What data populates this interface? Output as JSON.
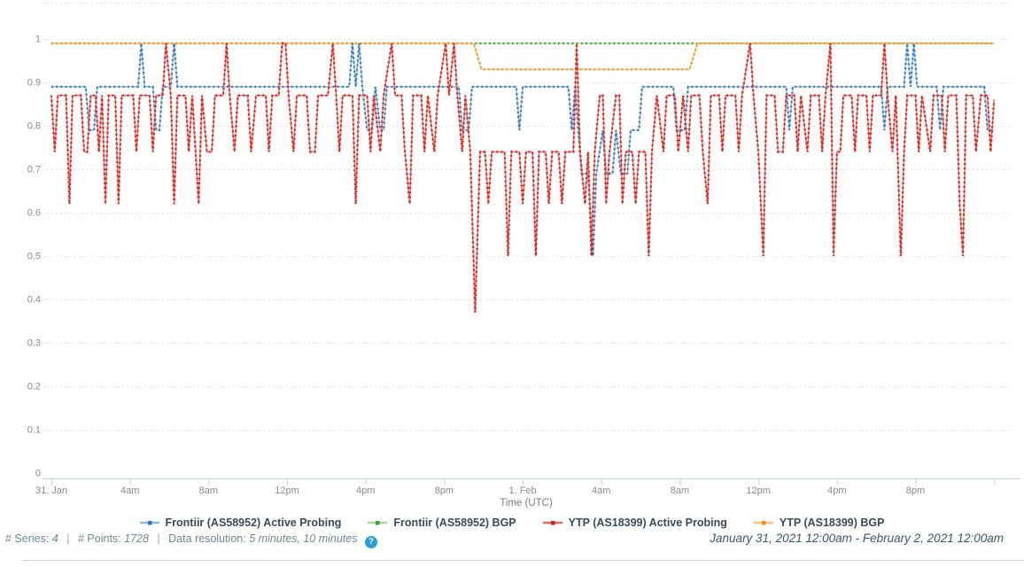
{
  "xaxis": {
    "label": "Time (UTC)",
    "ticks": [
      "31. Jan",
      "4am",
      "8am",
      "12pm",
      "4pm",
      "8pm",
      "1. Feb",
      "4am",
      "8am",
      "12pm",
      "4pm",
      "8pm"
    ]
  },
  "yaxis": {
    "ticks": [
      "0",
      "0.1",
      "0.2",
      "0.3",
      "0.4",
      "0.5",
      "0.6",
      "0.7",
      "0.8",
      "0.9",
      "1"
    ]
  },
  "legend": [
    {
      "label": "Frontiir (AS58952) Active Probing",
      "line_color": "#8cb9dc",
      "marker_color": "#2f77b5"
    },
    {
      "label": "Frontiir (AS58952) BGP",
      "line_color": "#a9d89b",
      "marker_color": "#3f9e3f"
    },
    {
      "label": "YTP (AS18399) Active Probing",
      "line_color": "#f0695f",
      "marker_color": "#d42020"
    },
    {
      "label": "YTP (AS18399) BGP",
      "line_color": "#fcc179",
      "marker_color": "#f1921e"
    }
  ],
  "footer": {
    "series_label": "# Series:",
    "series_value": "4",
    "separator": "|",
    "points_label": "# Points:",
    "points_value": "1728",
    "resolution_label": "Data resolution:",
    "resolution_value": "5 minutes, 10 minutes",
    "help_icon": "?"
  },
  "date_range": "January 31, 2021 12:00am - February 2, 2021 12:00am",
  "colors": {
    "grid": "#e4e4e4",
    "axis": "#c6d2dd",
    "tick_label": "#8b8b8b",
    "axis_title": "#7b7b7b"
  },
  "chart_data": {
    "type": "line",
    "title": "",
    "xlabel": "Time (UTC)",
    "ylabel": "",
    "x_unit": "hours since January 31, 2021 12:00am UTC",
    "xlim": [
      0,
      48
    ],
    "ylim": [
      0,
      1.08
    ],
    "grid": "horizontal-dashed",
    "legend_position": "bottom",
    "x_tick_hours": [
      0,
      4,
      8,
      12,
      16,
      20,
      24,
      28,
      32,
      36,
      40,
      44,
      48
    ],
    "y_tick_values": [
      0,
      0.1,
      0.2,
      0.3,
      0.4,
      0.5,
      0.6,
      0.7,
      0.8,
      0.9,
      1
    ],
    "series": [
      {
        "name": "Frontiir (AS58952) BGP",
        "line_color": "#a9d89b",
        "marker_color": "#3f9e3f",
        "points": [
          [
            0,
            0.99
          ],
          [
            48,
            0.99
          ]
        ]
      },
      {
        "name": "YTP (AS18399) BGP",
        "line_color": "#fcc179",
        "marker_color": "#f1921e",
        "points": [
          [
            0,
            0.99
          ],
          [
            21.5,
            0.99
          ],
          [
            21.9,
            0.93
          ],
          [
            32.5,
            0.93
          ],
          [
            32.9,
            0.99
          ],
          [
            48,
            0.99
          ]
        ]
      },
      {
        "name": "Frontiir (AS58952) Active Probing",
        "line_color": "#8cb9dc",
        "marker_color": "#2f77b5",
        "points": [
          [
            0,
            0.89
          ],
          [
            1.75,
            0.89
          ],
          [
            1.92,
            0.79
          ],
          [
            2.17,
            0.79
          ],
          [
            2.33,
            0.89
          ],
          [
            4.42,
            0.89
          ],
          [
            4.58,
            0.99
          ],
          [
            4.75,
            0.89
          ],
          [
            5.17,
            0.89
          ],
          [
            5.33,
            0.79
          ],
          [
            5.5,
            0.79
          ],
          [
            5.67,
            0.89
          ],
          [
            6.08,
            0.89
          ],
          [
            6.25,
            0.99
          ],
          [
            6.42,
            0.89
          ],
          [
            15.17,
            0.89
          ],
          [
            15.33,
            0.99
          ],
          [
            15.5,
            0.89
          ],
          [
            15.67,
            0.99
          ],
          [
            15.83,
            0.89
          ],
          [
            16.08,
            0.79
          ],
          [
            16.33,
            0.79
          ],
          [
            16.5,
            0.89
          ],
          [
            16.75,
            0.79
          ],
          [
            16.92,
            0.79
          ],
          [
            17.08,
            0.89
          ],
          [
            20.75,
            0.89
          ],
          [
            20.92,
            0.79
          ],
          [
            21.25,
            0.79
          ],
          [
            21.42,
            0.89
          ],
          [
            23.67,
            0.89
          ],
          [
            23.83,
            0.79
          ],
          [
            24.0,
            0.89
          ],
          [
            26.33,
            0.89
          ],
          [
            26.5,
            0.79
          ],
          [
            26.67,
            0.89
          ],
          [
            26.83,
            0.79
          ],
          [
            27.0,
            0.69
          ],
          [
            27.33,
            0.69
          ],
          [
            27.58,
            0.5
          ],
          [
            27.75,
            0.69
          ],
          [
            28.08,
            0.79
          ],
          [
            28.25,
            0.69
          ],
          [
            28.58,
            0.69
          ],
          [
            28.75,
            0.79
          ],
          [
            29.0,
            0.69
          ],
          [
            29.33,
            0.69
          ],
          [
            29.5,
            0.79
          ],
          [
            29.92,
            0.79
          ],
          [
            30.08,
            0.89
          ],
          [
            31.67,
            0.89
          ],
          [
            31.83,
            0.79
          ],
          [
            32.25,
            0.79
          ],
          [
            32.42,
            0.89
          ],
          [
            37.42,
            0.89
          ],
          [
            37.58,
            0.79
          ],
          [
            37.75,
            0.89
          ],
          [
            42.25,
            0.89
          ],
          [
            42.42,
            0.79
          ],
          [
            42.58,
            0.89
          ],
          [
            43.42,
            0.89
          ],
          [
            43.58,
            0.99
          ],
          [
            43.75,
            0.89
          ],
          [
            43.92,
            0.99
          ],
          [
            44.08,
            0.89
          ],
          [
            45.08,
            0.89
          ],
          [
            45.25,
            0.79
          ],
          [
            45.42,
            0.89
          ],
          [
            47.5,
            0.89
          ],
          [
            47.67,
            0.79
          ],
          [
            48,
            0.79
          ]
        ]
      },
      {
        "name": "YTP (AS18399) Active Probing",
        "line_color": "#f0695f",
        "marker_color": "#d42020",
        "points": [
          [
            0,
            0.87
          ],
          [
            0.17,
            0.74
          ],
          [
            0.33,
            0.87
          ],
          [
            0.75,
            0.87
          ],
          [
            0.92,
            0.62
          ],
          [
            1.08,
            0.87
          ],
          [
            1.5,
            0.87
          ],
          [
            1.67,
            0.74
          ],
          [
            1.83,
            0.74
          ],
          [
            2.0,
            0.87
          ],
          [
            2.25,
            0.87
          ],
          [
            2.42,
            0.74
          ],
          [
            2.58,
            0.87
          ],
          [
            2.75,
            0.62
          ],
          [
            2.92,
            0.87
          ],
          [
            3.25,
            0.87
          ],
          [
            3.42,
            0.62
          ],
          [
            3.58,
            0.87
          ],
          [
            4.17,
            0.87
          ],
          [
            4.33,
            0.74
          ],
          [
            4.5,
            0.87
          ],
          [
            5.0,
            0.87
          ],
          [
            5.17,
            0.74
          ],
          [
            5.33,
            0.87
          ],
          [
            5.67,
            0.87
          ],
          [
            5.83,
            0.99
          ],
          [
            6.08,
            0.87
          ],
          [
            6.25,
            0.62
          ],
          [
            6.42,
            0.87
          ],
          [
            6.83,
            0.87
          ],
          [
            7.0,
            0.74
          ],
          [
            7.17,
            0.87
          ],
          [
            7.5,
            0.62
          ],
          [
            7.67,
            0.87
          ],
          [
            7.92,
            0.74
          ],
          [
            8.17,
            0.74
          ],
          [
            8.33,
            0.87
          ],
          [
            8.75,
            0.87
          ],
          [
            8.92,
            0.99
          ],
          [
            9.08,
            0.87
          ],
          [
            9.33,
            0.74
          ],
          [
            9.5,
            0.87
          ],
          [
            10.0,
            0.87
          ],
          [
            10.17,
            0.74
          ],
          [
            10.42,
            0.87
          ],
          [
            10.92,
            0.87
          ],
          [
            11.08,
            0.74
          ],
          [
            11.25,
            0.87
          ],
          [
            11.58,
            0.87
          ],
          [
            11.75,
            0.99
          ],
          [
            11.92,
            0.99
          ],
          [
            12.08,
            0.87
          ],
          [
            12.33,
            0.74
          ],
          [
            12.5,
            0.87
          ],
          [
            13.0,
            0.87
          ],
          [
            13.17,
            0.74
          ],
          [
            13.42,
            0.74
          ],
          [
            13.58,
            0.87
          ],
          [
            14.08,
            0.87
          ],
          [
            14.33,
            0.99
          ],
          [
            14.5,
            0.87
          ],
          [
            14.67,
            0.74
          ],
          [
            14.83,
            0.87
          ],
          [
            15.33,
            0.87
          ],
          [
            15.5,
            0.62
          ],
          [
            15.67,
            0.87
          ],
          [
            16.08,
            0.87
          ],
          [
            16.25,
            0.74
          ],
          [
            16.42,
            0.87
          ],
          [
            16.75,
            0.74
          ],
          [
            16.92,
            0.87
          ],
          [
            17.33,
            0.99
          ],
          [
            17.5,
            0.87
          ],
          [
            17.83,
            0.87
          ],
          [
            18.0,
            0.74
          ],
          [
            18.25,
            0.62
          ],
          [
            18.42,
            0.87
          ],
          [
            18.83,
            0.87
          ],
          [
            19.0,
            0.74
          ],
          [
            19.17,
            0.87
          ],
          [
            19.5,
            0.74
          ],
          [
            19.67,
            0.87
          ],
          [
            20.08,
            0.99
          ],
          [
            20.25,
            0.87
          ],
          [
            20.5,
            0.99
          ],
          [
            20.67,
            0.87
          ],
          [
            20.92,
            0.74
          ],
          [
            21.08,
            0.87
          ],
          [
            21.33,
            0.74
          ],
          [
            21.58,
            0.37
          ],
          [
            21.83,
            0.74
          ],
          [
            22.08,
            0.74
          ],
          [
            22.25,
            0.62
          ],
          [
            22.42,
            0.74
          ],
          [
            23.08,
            0.74
          ],
          [
            23.25,
            0.5
          ],
          [
            23.42,
            0.74
          ],
          [
            23.83,
            0.74
          ],
          [
            24.0,
            0.62
          ],
          [
            24.17,
            0.74
          ],
          [
            24.5,
            0.74
          ],
          [
            24.67,
            0.5
          ],
          [
            24.83,
            0.74
          ],
          [
            25.17,
            0.74
          ],
          [
            25.33,
            0.62
          ],
          [
            25.5,
            0.74
          ],
          [
            25.83,
            0.74
          ],
          [
            26.0,
            0.62
          ],
          [
            26.17,
            0.74
          ],
          [
            26.58,
            0.74
          ],
          [
            26.75,
            0.99
          ],
          [
            26.92,
            0.74
          ],
          [
            27.17,
            0.62
          ],
          [
            27.33,
            0.74
          ],
          [
            27.5,
            0.5
          ],
          [
            27.67,
            0.74
          ],
          [
            27.92,
            0.87
          ],
          [
            28.08,
            0.87
          ],
          [
            28.25,
            0.62
          ],
          [
            28.42,
            0.74
          ],
          [
            28.75,
            0.87
          ],
          [
            28.92,
            0.87
          ],
          [
            29.08,
            0.62
          ],
          [
            29.25,
            0.74
          ],
          [
            29.58,
            0.74
          ],
          [
            29.75,
            0.62
          ],
          [
            29.92,
            0.74
          ],
          [
            30.25,
            0.74
          ],
          [
            30.42,
            0.5
          ],
          [
            30.58,
            0.74
          ],
          [
            30.83,
            0.87
          ],
          [
            31.17,
            0.74
          ],
          [
            31.33,
            0.87
          ],
          [
            31.75,
            0.87
          ],
          [
            31.92,
            0.74
          ],
          [
            32.17,
            0.87
          ],
          [
            32.42,
            0.74
          ],
          [
            32.58,
            0.87
          ],
          [
            33.0,
            0.87
          ],
          [
            33.17,
            0.74
          ],
          [
            33.42,
            0.62
          ],
          [
            33.58,
            0.87
          ],
          [
            34.0,
            0.87
          ],
          [
            34.17,
            0.74
          ],
          [
            34.33,
            0.87
          ],
          [
            34.83,
            0.87
          ],
          [
            35.0,
            0.74
          ],
          [
            35.17,
            0.87
          ],
          [
            35.58,
            0.99
          ],
          [
            35.75,
            0.87
          ],
          [
            36.0,
            0.74
          ],
          [
            36.25,
            0.5
          ],
          [
            36.42,
            0.87
          ],
          [
            36.83,
            0.87
          ],
          [
            37.0,
            0.74
          ],
          [
            37.25,
            0.74
          ],
          [
            37.42,
            0.87
          ],
          [
            37.83,
            0.87
          ],
          [
            38.0,
            0.74
          ],
          [
            38.17,
            0.87
          ],
          [
            38.5,
            0.74
          ],
          [
            38.67,
            0.87
          ],
          [
            39.08,
            0.87
          ],
          [
            39.25,
            0.74
          ],
          [
            39.42,
            0.87
          ],
          [
            39.67,
            0.99
          ],
          [
            39.83,
            0.5
          ],
          [
            40.0,
            0.74
          ],
          [
            40.17,
            0.74
          ],
          [
            40.33,
            0.87
          ],
          [
            40.75,
            0.87
          ],
          [
            40.92,
            0.74
          ],
          [
            41.08,
            0.87
          ],
          [
            41.5,
            0.87
          ],
          [
            41.67,
            0.74
          ],
          [
            41.83,
            0.87
          ],
          [
            42.25,
            0.87
          ],
          [
            42.42,
            0.99
          ],
          [
            42.58,
            0.87
          ],
          [
            42.83,
            0.74
          ],
          [
            43.0,
            0.87
          ],
          [
            43.25,
            0.5
          ],
          [
            43.42,
            0.74
          ],
          [
            43.58,
            0.87
          ],
          [
            44.0,
            0.87
          ],
          [
            44.17,
            0.74
          ],
          [
            44.33,
            0.87
          ],
          [
            44.75,
            0.74
          ],
          [
            44.92,
            0.87
          ],
          [
            45.33,
            0.87
          ],
          [
            45.5,
            0.74
          ],
          [
            45.67,
            0.87
          ],
          [
            46.08,
            0.87
          ],
          [
            46.25,
            0.62
          ],
          [
            46.42,
            0.5
          ],
          [
            46.58,
            0.87
          ],
          [
            46.92,
            0.87
          ],
          [
            47.08,
            0.74
          ],
          [
            47.33,
            0.87
          ],
          [
            47.67,
            0.87
          ],
          [
            47.83,
            0.74
          ],
          [
            48,
            0.86
          ]
        ]
      }
    ]
  }
}
